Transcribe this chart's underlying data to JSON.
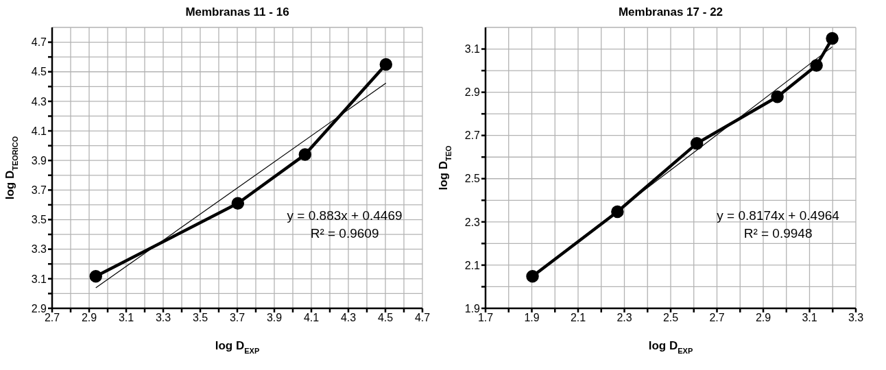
{
  "chart_data": [
    {
      "type": "line",
      "title": "Membranas 11 - 16",
      "xlabel": "log D$_{EXP}$",
      "ylabel": "log D$_{TEORICO}$",
      "xlim": [
        2.7,
        4.7
      ],
      "xticks": [
        2.7,
        {
          "value": 2.8,
          "label": null
        },
        2.9,
        {
          "value": 3.0,
          "label": null
        },
        3.1,
        {
          "value": 3.2,
          "label": null
        },
        3.3,
        {
          "value": 3.4,
          "label": null
        },
        3.5,
        {
          "value": 3.6,
          "label": null
        },
        3.7,
        {
          "value": 3.8,
          "label": null
        },
        3.9,
        {
          "value": 4.0,
          "label": null
        },
        4.1,
        {
          "value": 4.2,
          "label": null
        },
        4.3,
        {
          "value": 4.4,
          "label": null
        },
        4.5,
        {
          "value": 4.6,
          "label": null
        },
        4.7
      ],
      "ylim": [
        2.9,
        4.8
      ],
      "yticks": [
        2.9,
        {
          "value": 3.0,
          "label": null
        },
        3.1,
        {
          "value": 3.2,
          "label": null
        },
        3.3,
        {
          "value": 3.4,
          "label": null
        },
        3.5,
        {
          "value": 3.6,
          "label": null
        },
        3.7,
        {
          "value": 3.8,
          "label": null
        },
        3.9,
        {
          "value": 4.0,
          "label": null
        },
        4.1,
        {
          "value": 4.2,
          "label": null
        },
        4.3,
        {
          "value": 4.4,
          "label": null
        },
        4.5,
        {
          "value": 4.6,
          "label": null
        },
        4.7
      ],
      "grid": true,
      "annotations": [
        "y = 0.883x + 0.4469",
        "R² = 0.9609"
      ],
      "series": [
        {
          "type": "line",
          "color": "#000000",
          "marker": "circle",
          "x": [
            2.936,
            3.703,
            4.066,
            4.503
          ],
          "values": [
            3.117,
            3.61,
            3.94,
            4.55
          ]
        },
        {
          "type": "line",
          "color": "#000000",
          "marker": "none",
          "x": [
            2.936,
            4.503
          ],
          "values": [
            3.039,
            4.423
          ]
        }
      ]
    },
    {
      "type": "line",
      "title": "Membranas 17 - 22",
      "xlabel": "log D$_{EXP}$",
      "ylabel": "log D$_{TEO}$",
      "xlim": [
        1.7,
        3.3
      ],
      "xticks": [
        1.7,
        {
          "value": 1.8,
          "label": null
        },
        1.9,
        {
          "value": 2.0,
          "label": null
        },
        2.1,
        {
          "value": 2.2,
          "label": null
        },
        2.3,
        {
          "value": 2.4,
          "label": null
        },
        2.5,
        {
          "value": 2.6,
          "label": null
        },
        2.7,
        {
          "value": 2.8,
          "label": null
        },
        2.9,
        {
          "value": 3.0,
          "label": null
        },
        3.1,
        {
          "value": 3.2,
          "label": null
        },
        3.3
      ],
      "ylim": [
        1.9,
        3.2
      ],
      "yticks": [
        1.9,
        {
          "value": 2.0,
          "label": null
        },
        2.1,
        {
          "value": 2.2,
          "label": null
        },
        2.3,
        {
          "value": 2.4,
          "label": null
        },
        2.5,
        {
          "value": 2.6,
          "label": null
        },
        2.7,
        {
          "value": 2.8,
          "label": null
        },
        2.9,
        {
          "value": 3.0,
          "label": null
        },
        3.1
      ],
      "grid": true,
      "annotations": [
        "y = 0.8174x + 0.4964",
        "R² = 0.9948"
      ],
      "series": [
        {
          "type": "line",
          "color": "#000000",
          "marker": "circle",
          "x": [
            1.903,
            2.27,
            2.613,
            2.961,
            3.13,
            3.198
          ],
          "values": [
            2.048,
            2.347,
            2.663,
            2.879,
            3.024,
            3.149
          ]
        },
        {
          "type": "line",
          "color": "#000000",
          "marker": "none",
          "x": [
            1.903,
            3.198
          ],
          "values": [
            2.052,
            3.11
          ]
        }
      ]
    }
  ]
}
